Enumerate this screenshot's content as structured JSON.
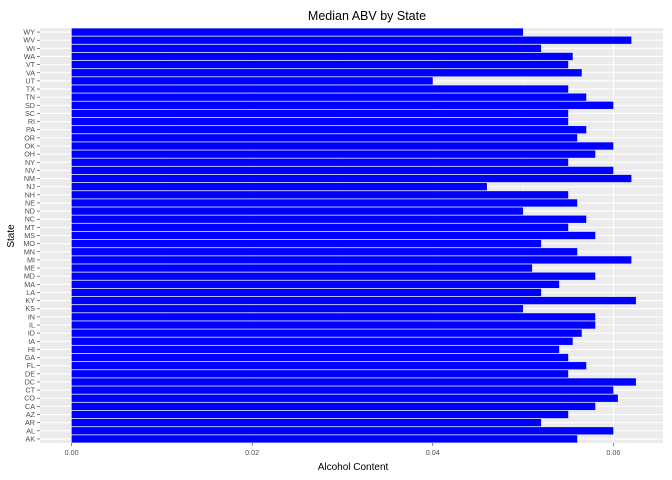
{
  "chart_data": {
    "type": "bar",
    "orientation": "horizontal",
    "title": "Median ABV by State",
    "xlabel": "Alcohol Content",
    "ylabel": "State",
    "xlim": [
      -0.0035,
      0.0655
    ],
    "x_ticks": [
      "0.00",
      "0.02",
      "0.04",
      "0.06"
    ],
    "x_tick_values": [
      0.0,
      0.02,
      0.04,
      0.06
    ],
    "grid": true,
    "bar_color": "#0000ff",
    "panel_color": "#ebebeb",
    "grid_color": "#ffffff",
    "categories": [
      "AK",
      "AL",
      "AR",
      "AZ",
      "CA",
      "CO",
      "CT",
      "DC",
      "DE",
      "FL",
      "GA",
      "HI",
      "IA",
      "ID",
      "IL",
      "IN",
      "KS",
      "KY",
      "LA",
      "MA",
      "MD",
      "ME",
      "MI",
      "MN",
      "MO",
      "MS",
      "MT",
      "NC",
      "ND",
      "NE",
      "NH",
      "NJ",
      "NM",
      "NV",
      "NY",
      "OH",
      "OK",
      "OR",
      "PA",
      "RI",
      "SC",
      "SD",
      "TN",
      "TX",
      "UT",
      "VA",
      "VT",
      "WA",
      "WI",
      "WV",
      "WY"
    ],
    "values": [
      0.056,
      0.06,
      0.052,
      0.055,
      0.058,
      0.0605,
      0.06,
      0.0625,
      0.055,
      0.057,
      0.055,
      0.054,
      0.0555,
      0.0565,
      0.058,
      0.058,
      0.05,
      0.0625,
      0.052,
      0.054,
      0.058,
      0.051,
      0.062,
      0.056,
      0.052,
      0.058,
      0.055,
      0.057,
      0.05,
      0.056,
      0.055,
      0.046,
      0.062,
      0.06,
      0.055,
      0.058,
      0.06,
      0.056,
      0.057,
      0.055,
      0.055,
      0.06,
      0.057,
      0.055,
      0.04,
      0.0565,
      0.055,
      0.0555,
      0.052,
      0.062,
      0.05
    ]
  }
}
